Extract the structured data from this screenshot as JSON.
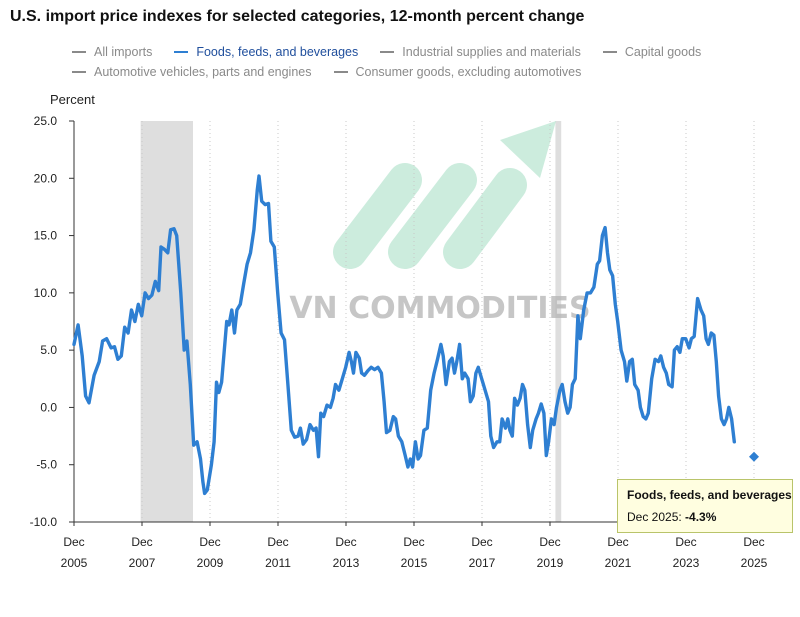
{
  "chart_data": {
    "type": "line",
    "title": "U.S. import price indexes for selected categories, 12-month percent change",
    "ylabel": "Percent",
    "xlabel": "",
    "ylim": [
      -10,
      25
    ],
    "yticks": [
      "25.0",
      "20.0",
      "15.0",
      "10.0",
      "5.0",
      "0.0",
      "-5.0",
      "-10.0"
    ],
    "ytick_values": [
      25,
      20,
      15,
      10,
      5,
      0,
      -5,
      -10
    ],
    "xticks": [
      {
        "month": "Dec",
        "year": "2005",
        "date": 2005.96
      },
      {
        "month": "Dec",
        "year": "2007",
        "date": 2007.96
      },
      {
        "month": "Dec",
        "year": "2009",
        "date": 2009.96
      },
      {
        "month": "Dec",
        "year": "2011",
        "date": 2011.96
      },
      {
        "month": "Dec",
        "year": "2013",
        "date": 2013.96
      },
      {
        "month": "Dec",
        "year": "2015",
        "date": 2015.96
      },
      {
        "month": "Dec",
        "year": "2017",
        "date": 2017.96
      },
      {
        "month": "Dec",
        "year": "2019",
        "date": 2019.96
      },
      {
        "month": "Dec",
        "year": "2021",
        "date": 2021.96
      },
      {
        "month": "Dec",
        "year": "2023",
        "date": 2023.96
      },
      {
        "month": "Dec",
        "year": "2025",
        "date": 2025.96
      }
    ],
    "xlim": [
      2005.96,
      2025.96
    ],
    "grid": "vertical-dotted",
    "legend_position": "top",
    "recession_bands": [
      [
        2007.92,
        2009.46
      ],
      [
        2020.12,
        2020.29
      ]
    ],
    "series": [
      {
        "name": "All imports",
        "color": "#8a8a8a",
        "visible": false
      },
      {
        "name": "Foods, feeds, and beverages",
        "color": "#2e7fd2",
        "visible": true,
        "points": [
          [
            2005.96,
            5.5
          ],
          [
            2006.08,
            7.2
          ],
          [
            2006.2,
            4.5
          ],
          [
            2006.3,
            1.0
          ],
          [
            2006.4,
            0.4
          ],
          [
            2006.55,
            2.8
          ],
          [
            2006.7,
            4.0
          ],
          [
            2006.8,
            5.8
          ],
          [
            2006.92,
            6.0
          ],
          [
            2007.05,
            5.2
          ],
          [
            2007.15,
            5.3
          ],
          [
            2007.25,
            4.2
          ],
          [
            2007.35,
            4.5
          ],
          [
            2007.45,
            7.0
          ],
          [
            2007.55,
            6.5
          ],
          [
            2007.65,
            8.5
          ],
          [
            2007.75,
            7.5
          ],
          [
            2007.85,
            9.0
          ],
          [
            2007.95,
            8.0
          ],
          [
            2008.05,
            10.0
          ],
          [
            2008.15,
            9.5
          ],
          [
            2008.25,
            9.8
          ],
          [
            2008.35,
            11.0
          ],
          [
            2008.45,
            10.2
          ],
          [
            2008.52,
            14.0
          ],
          [
            2008.62,
            13.8
          ],
          [
            2008.72,
            13.5
          ],
          [
            2008.8,
            15.5
          ],
          [
            2008.9,
            15.6
          ],
          [
            2008.98,
            15.0
          ],
          [
            2009.1,
            10.0
          ],
          [
            2009.2,
            5.0
          ],
          [
            2009.28,
            5.8
          ],
          [
            2009.38,
            2.0
          ],
          [
            2009.48,
            -3.3
          ],
          [
            2009.58,
            -3.0
          ],
          [
            2009.68,
            -4.5
          ],
          [
            2009.75,
            -6.5
          ],
          [
            2009.8,
            -7.5
          ],
          [
            2009.88,
            -7.2
          ],
          [
            2010.0,
            -5.0
          ],
          [
            2010.08,
            -3.0
          ],
          [
            2010.15,
            2.2
          ],
          [
            2010.22,
            1.3
          ],
          [
            2010.3,
            2.2
          ],
          [
            2010.38,
            5.0
          ],
          [
            2010.45,
            7.5
          ],
          [
            2010.52,
            7.2
          ],
          [
            2010.6,
            8.5
          ],
          [
            2010.68,
            6.5
          ],
          [
            2010.75,
            8.5
          ],
          [
            2010.85,
            9.0
          ],
          [
            2010.95,
            10.8
          ],
          [
            2011.05,
            12.5
          ],
          [
            2011.15,
            13.5
          ],
          [
            2011.25,
            15.5
          ],
          [
            2011.35,
            19.0
          ],
          [
            2011.4,
            20.2
          ],
          [
            2011.48,
            18.0
          ],
          [
            2011.58,
            17.7
          ],
          [
            2011.68,
            17.8
          ],
          [
            2011.75,
            14.5
          ],
          [
            2011.85,
            14.0
          ],
          [
            2011.95,
            10.0
          ],
          [
            2012.05,
            6.5
          ],
          [
            2012.15,
            5.9
          ],
          [
            2012.25,
            2.0
          ],
          [
            2012.35,
            -2.0
          ],
          [
            2012.45,
            -2.6
          ],
          [
            2012.55,
            -2.5
          ],
          [
            2012.62,
            -1.8
          ],
          [
            2012.7,
            -3.2
          ],
          [
            2012.8,
            -2.8
          ],
          [
            2012.9,
            -1.5
          ],
          [
            2013.0,
            -2.0
          ],
          [
            2013.08,
            -1.8
          ],
          [
            2013.15,
            -4.3
          ],
          [
            2013.22,
            -0.5
          ],
          [
            2013.3,
            -0.8
          ],
          [
            2013.4,
            0.2
          ],
          [
            2013.5,
            0.0
          ],
          [
            2013.58,
            0.8
          ],
          [
            2013.65,
            2.0
          ],
          [
            2013.75,
            1.5
          ],
          [
            2013.85,
            2.5
          ],
          [
            2013.95,
            3.5
          ],
          [
            2014.05,
            4.8
          ],
          [
            2014.12,
            4.0
          ],
          [
            2014.18,
            3.0
          ],
          [
            2014.25,
            4.8
          ],
          [
            2014.35,
            4.3
          ],
          [
            2014.42,
            3.0
          ],
          [
            2014.5,
            2.8
          ],
          [
            2014.6,
            3.2
          ],
          [
            2014.7,
            3.5
          ],
          [
            2014.8,
            3.3
          ],
          [
            2014.9,
            3.5
          ],
          [
            2015.0,
            3.0
          ],
          [
            2015.08,
            0.5
          ],
          [
            2015.15,
            -2.2
          ],
          [
            2015.25,
            -2.0
          ],
          [
            2015.35,
            -0.8
          ],
          [
            2015.42,
            -1.0
          ],
          [
            2015.5,
            -2.5
          ],
          [
            2015.6,
            -3.0
          ],
          [
            2015.7,
            -4.2
          ],
          [
            2015.78,
            -5.2
          ],
          [
            2015.85,
            -4.5
          ],
          [
            2015.92,
            -5.2
          ],
          [
            2016.0,
            -3.0
          ],
          [
            2016.08,
            -4.5
          ],
          [
            2016.15,
            -4.2
          ],
          [
            2016.25,
            -2.0
          ],
          [
            2016.35,
            -1.8
          ],
          [
            2016.45,
            1.5
          ],
          [
            2016.55,
            3.0
          ],
          [
            2016.65,
            4.2
          ],
          [
            2016.75,
            5.5
          ],
          [
            2016.82,
            4.5
          ],
          [
            2016.9,
            2.0
          ],
          [
            2017.0,
            4.0
          ],
          [
            2017.08,
            4.3
          ],
          [
            2017.15,
            3.0
          ],
          [
            2017.22,
            4.0
          ],
          [
            2017.3,
            5.5
          ],
          [
            2017.38,
            2.5
          ],
          [
            2017.45,
            3.0
          ],
          [
            2017.55,
            2.5
          ],
          [
            2017.62,
            0.5
          ],
          [
            2017.7,
            1.0
          ],
          [
            2017.78,
            3.0
          ],
          [
            2017.85,
            3.5
          ],
          [
            2017.95,
            2.5
          ],
          [
            2018.05,
            1.5
          ],
          [
            2018.15,
            0.5
          ],
          [
            2018.22,
            -2.5
          ],
          [
            2018.3,
            -3.5
          ],
          [
            2018.4,
            -3.0
          ],
          [
            2018.48,
            -3.0
          ],
          [
            2018.55,
            -1.0
          ],
          [
            2018.65,
            -1.8
          ],
          [
            2018.72,
            -1.0
          ],
          [
            2018.78,
            -2.0
          ],
          [
            2018.85,
            -2.5
          ],
          [
            2018.92,
            0.8
          ],
          [
            2019.0,
            0.2
          ],
          [
            2019.08,
            0.8
          ],
          [
            2019.15,
            2.0
          ],
          [
            2019.22,
            1.5
          ],
          [
            2019.3,
            -1.5
          ],
          [
            2019.38,
            -3.5
          ],
          [
            2019.45,
            -2.0
          ],
          [
            2019.55,
            -1.0
          ],
          [
            2019.62,
            -0.5
          ],
          [
            2019.7,
            0.3
          ],
          [
            2019.78,
            -0.5
          ],
          [
            2019.85,
            -4.2
          ],
          [
            2019.92,
            -3.0
          ],
          [
            2020.0,
            -1.0
          ],
          [
            2020.08,
            -1.5
          ],
          [
            2020.15,
            0.0
          ],
          [
            2020.25,
            1.5
          ],
          [
            2020.32,
            2.0
          ],
          [
            2020.4,
            0.5
          ],
          [
            2020.48,
            -0.5
          ],
          [
            2020.55,
            0.0
          ],
          [
            2020.62,
            2.0
          ],
          [
            2020.7,
            2.5
          ],
          [
            2020.78,
            8.0
          ],
          [
            2020.85,
            6.0
          ],
          [
            2020.95,
            8.5
          ],
          [
            2021.05,
            10.0
          ],
          [
            2021.15,
            10.0
          ],
          [
            2021.25,
            10.5
          ],
          [
            2021.35,
            12.5
          ],
          [
            2021.42,
            12.8
          ],
          [
            2021.5,
            15.0
          ],
          [
            2021.58,
            15.7
          ],
          [
            2021.65,
            13.5
          ],
          [
            2021.72,
            12.0
          ],
          [
            2021.8,
            11.5
          ],
          [
            2021.88,
            9.0
          ],
          [
            2021.95,
            7.5
          ],
          [
            2022.05,
            5.0
          ],
          [
            2022.15,
            4.0
          ],
          [
            2022.22,
            2.3
          ],
          [
            2022.3,
            4.0
          ],
          [
            2022.38,
            4.2
          ],
          [
            2022.45,
            2.0
          ],
          [
            2022.55,
            1.5
          ],
          [
            2022.62,
            0.0
          ],
          [
            2022.7,
            -0.8
          ],
          [
            2022.78,
            -1.0
          ],
          [
            2022.85,
            -0.5
          ],
          [
            2022.95,
            2.5
          ],
          [
            2023.05,
            4.2
          ],
          [
            2023.15,
            4.0
          ],
          [
            2023.22,
            4.5
          ],
          [
            2023.3,
            3.5
          ],
          [
            2023.38,
            3.0
          ],
          [
            2023.45,
            2.0
          ],
          [
            2023.55,
            1.8
          ],
          [
            2023.62,
            5.0
          ],
          [
            2023.7,
            5.3
          ],
          [
            2023.78,
            4.8
          ],
          [
            2023.85,
            6.0
          ],
          [
            2023.95,
            6.0
          ],
          [
            2024.05,
            5.2
          ],
          [
            2024.12,
            6.0
          ],
          [
            2024.2,
            6.2
          ],
          [
            2024.3,
            9.5
          ],
          [
            2024.4,
            8.5
          ],
          [
            2024.48,
            8.0
          ],
          [
            2024.55,
            6.0
          ],
          [
            2024.62,
            5.5
          ],
          [
            2024.7,
            6.5
          ],
          [
            2024.78,
            6.3
          ],
          [
            2024.85,
            4.0
          ],
          [
            2024.92,
            1.0
          ],
          [
            2025.0,
            -1.0
          ],
          [
            2025.08,
            -1.5
          ],
          [
            2025.15,
            -1.0
          ],
          [
            2025.22,
            0.0
          ],
          [
            2025.3,
            -1.0
          ],
          [
            2025.38,
            -3.0
          ],
          [
            2025.96,
            -4.3
          ]
        ]
      },
      {
        "name": "Industrial supplies and materials",
        "color": "#8a8a8a",
        "visible": false
      },
      {
        "name": "Capital goods",
        "color": "#8a8a8a",
        "visible": false
      },
      {
        "name": "Automotive vehicles, parts and engines",
        "color": "#8a8a8a",
        "visible": false
      },
      {
        "name": "Consumer goods, excluding automotives",
        "color": "#8a8a8a",
        "visible": false
      }
    ]
  },
  "legend_rows": [
    [
      {
        "name": "All imports",
        "color": "#8a8a8a",
        "text_color": "#8a8a8a"
      },
      {
        "name": "Foods, feeds, and beverages",
        "color": "#2e7fd2",
        "text_color": "#1f4e9c"
      },
      {
        "name": "Industrial supplies and materials",
        "color": "#8a8a8a",
        "text_color": "#8a8a8a"
      },
      {
        "name": "Capital goods",
        "color": "#8a8a8a",
        "text_color": "#8a8a8a"
      }
    ],
    [
      {
        "name": "Automotive vehicles, parts and engines",
        "color": "#8a8a8a",
        "text_color": "#8a8a8a"
      },
      {
        "name": "Consumer goods, excluding automotives",
        "color": "#8a8a8a",
        "text_color": "#8a8a8a"
      }
    ]
  ],
  "tooltip": {
    "series": "Foods, feeds, and beverages",
    "date": "Dec 2025:",
    "value": "-4.3%"
  },
  "watermark": "VN COMMODITIES",
  "colors": {
    "series_line": "#2e7fd2",
    "recession_band": "#dedede",
    "grid": "#c8c8c8",
    "axis": "#333333",
    "tooltip_bg": "#fffee0",
    "tooltip_border": "#b9c46a",
    "watermark_green": "#8fd6b6",
    "watermark_text": "#b8b8b8"
  }
}
